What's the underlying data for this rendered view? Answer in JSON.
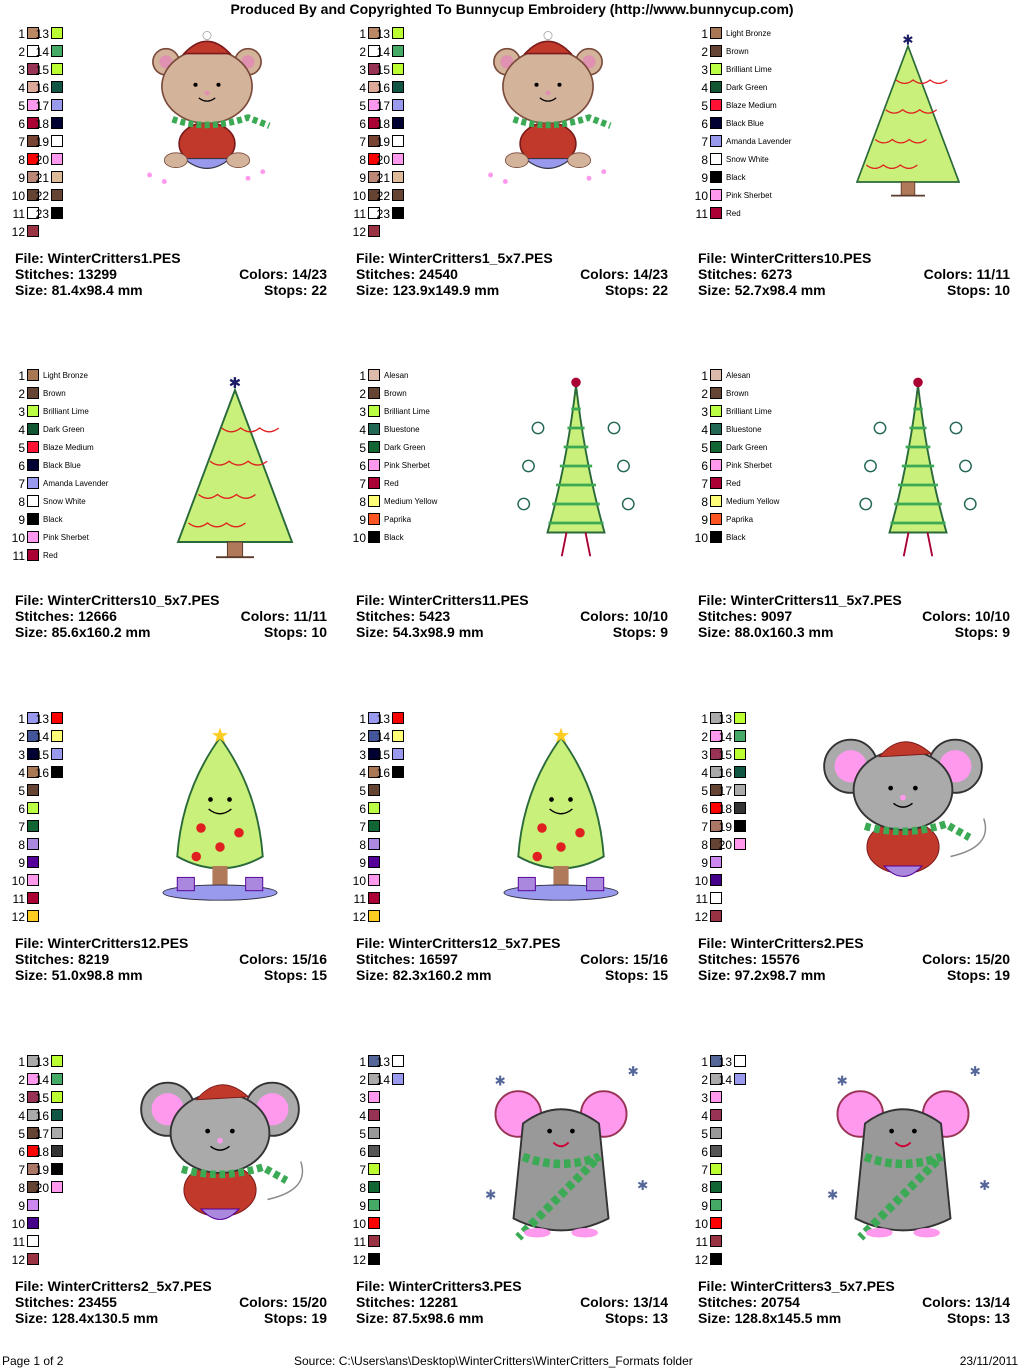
{
  "header": {
    "title": "Produced By and Copyrighted To Bunnycup Embroidery (http://www.bunnycup.com)"
  },
  "labels": {
    "file": "File: ",
    "stitches": "Stitches: ",
    "size": "Size: ",
    "colors": "Colors: ",
    "stops": "Stops: "
  },
  "palette_numbered": [
    {
      "n": "1",
      "c": "#bb8866"
    },
    {
      "n": "2",
      "c": "#ffffff"
    },
    {
      "n": "3",
      "c": "#993355"
    },
    {
      "n": "4",
      "c": "#ddaa99"
    },
    {
      "n": "5",
      "c": "#ff99ee"
    },
    {
      "n": "6",
      "c": "#aa0033"
    },
    {
      "n": "7",
      "c": "#774433"
    },
    {
      "n": "8",
      "c": "#ff0000"
    },
    {
      "n": "9",
      "c": "#bb8877"
    },
    {
      "n": "10",
      "c": "#664433"
    },
    {
      "n": "11",
      "c": "#ffffff"
    },
    {
      "n": "12",
      "c": "#993344"
    },
    {
      "n": "13",
      "c": "#bbff33"
    },
    {
      "n": "14",
      "c": "#44aa66"
    },
    {
      "n": "15",
      "c": "#bbff33"
    },
    {
      "n": "16",
      "c": "#115544"
    },
    {
      "n": "17",
      "c": "#9999ee"
    },
    {
      "n": "18",
      "c": "#000033"
    },
    {
      "n": "19",
      "c": "#ffffff"
    },
    {
      "n": "20",
      "c": "#ff99ee"
    },
    {
      "n": "21",
      "c": "#ddbb99"
    },
    {
      "n": "22",
      "c": "#664433"
    },
    {
      "n": "23",
      "c": "#000000"
    }
  ],
  "tree10_colors": [
    {
      "n": "1",
      "name": "Light Bronze",
      "c": "#aa7755"
    },
    {
      "n": "2",
      "name": "Brown",
      "c": "#664433"
    },
    {
      "n": "3",
      "name": "Brilliant Lime",
      "c": "#bbff44"
    },
    {
      "n": "4",
      "name": "Dark Green",
      "c": "#115533"
    },
    {
      "n": "5",
      "name": "Blaze Medium",
      "c": "#ff1133"
    },
    {
      "n": "6",
      "name": "Black Blue",
      "c": "#000033"
    },
    {
      "n": "7",
      "name": "Amanda Lavender",
      "c": "#9999ee"
    },
    {
      "n": "8",
      "name": "Snow White",
      "c": "#ffffff"
    },
    {
      "n": "9",
      "name": "Black",
      "c": "#000000"
    },
    {
      "n": "10",
      "name": "Pink Sherbet",
      "c": "#ff99ee"
    },
    {
      "n": "11",
      "name": "Red",
      "c": "#aa0033"
    }
  ],
  "tree11_colors": [
    {
      "n": "1",
      "name": "Alesan",
      "c": "#ddbbaa"
    },
    {
      "n": "2",
      "name": "Brown",
      "c": "#664433"
    },
    {
      "n": "3",
      "name": "Brilliant Lime",
      "c": "#bbff44"
    },
    {
      "n": "4",
      "name": "Bluestone",
      "c": "#226655"
    },
    {
      "n": "5",
      "name": "Dark Green",
      "c": "#116633"
    },
    {
      "n": "6",
      "name": "Pink Sherbet",
      "c": "#ff99ee"
    },
    {
      "n": "7",
      "name": "Red",
      "c": "#aa0033"
    },
    {
      "n": "8",
      "name": "Medium Yellow",
      "c": "#ffff77"
    },
    {
      "n": "9",
      "name": "Paprika",
      "c": "#ff5522"
    },
    {
      "n": "10",
      "name": "Black",
      "c": "#000000"
    }
  ],
  "tree12_colors": [
    {
      "n": "1",
      "c": "#9999ee"
    },
    {
      "n": "2",
      "c": "#445599"
    },
    {
      "n": "3",
      "c": "#000033"
    },
    {
      "n": "4",
      "c": "#aa7755"
    },
    {
      "n": "5",
      "c": "#664433"
    },
    {
      "n": "6",
      "c": "#bbff44"
    },
    {
      "n": "7",
      "c": "#116633"
    },
    {
      "n": "8",
      "c": "#aa88dd"
    },
    {
      "n": "9",
      "c": "#550099"
    },
    {
      "n": "10",
      "c": "#ff99ee"
    },
    {
      "n": "11",
      "c": "#aa0033"
    },
    {
      "n": "12",
      "c": "#ffcc22"
    },
    {
      "n": "13",
      "c": "#ff0000"
    },
    {
      "n": "14",
      "c": "#ffff77"
    },
    {
      "n": "15",
      "c": "#9999ee"
    },
    {
      "n": "16",
      "c": "#000000"
    }
  ],
  "mouse2_colors": [
    {
      "n": "1",
      "c": "#aaaaaa"
    },
    {
      "n": "2",
      "c": "#ff99ee"
    },
    {
      "n": "3",
      "c": "#993355"
    },
    {
      "n": "4",
      "c": "#aaaaaa"
    },
    {
      "n": "5",
      "c": "#664433"
    },
    {
      "n": "6",
      "c": "#ff0000"
    },
    {
      "n": "7",
      "c": "#aa7766"
    },
    {
      "n": "8",
      "c": "#664433"
    },
    {
      "n": "9",
      "c": "#cc88ee"
    },
    {
      "n": "10",
      "c": "#440088"
    },
    {
      "n": "11",
      "c": "#ffffff"
    },
    {
      "n": "12",
      "c": "#993344"
    },
    {
      "n": "13",
      "c": "#bbff33"
    },
    {
      "n": "14",
      "c": "#44aa66"
    },
    {
      "n": "15",
      "c": "#bbff33"
    },
    {
      "n": "16",
      "c": "#115544"
    },
    {
      "n": "17",
      "c": "#aaaaaa"
    },
    {
      "n": "18",
      "c": "#333333"
    },
    {
      "n": "19",
      "c": "#000000"
    },
    {
      "n": "20",
      "c": "#ff99ee"
    }
  ],
  "mouse3_colors": [
    {
      "n": "1",
      "c": "#556699"
    },
    {
      "n": "2",
      "c": "#aaaaaa"
    },
    {
      "n": "3",
      "c": "#ff99ee"
    },
    {
      "n": "4",
      "c": "#993355"
    },
    {
      "n": "5",
      "c": "#999999"
    },
    {
      "n": "6",
      "c": "#555555"
    },
    {
      "n": "7",
      "c": "#bbff33"
    },
    {
      "n": "8",
      "c": "#116633"
    },
    {
      "n": "9",
      "c": "#44aa66"
    },
    {
      "n": "10",
      "c": "#ff0000"
    },
    {
      "n": "11",
      "c": "#993344"
    },
    {
      "n": "12",
      "c": "#000000"
    },
    {
      "n": "13",
      "c": "#ffffff"
    },
    {
      "n": "14",
      "c": "#9999ee"
    }
  ],
  "designs": [
    {
      "file": "WinterCritters1.PES",
      "stitches": "13299",
      "size": "81.4x98.4 mm",
      "colors": "14/23",
      "stops": "22",
      "art": "bear",
      "scale": 0.82,
      "palette": "bear"
    },
    {
      "file": "WinterCritters1_5x7.PES",
      "stitches": "24540",
      "size": "123.9x149.9 mm",
      "colors": "14/23",
      "stops": "22",
      "art": "bear",
      "scale": 0.82,
      "palette": "bear"
    },
    {
      "file": "WinterCritters10.PES",
      "stitches": "6273",
      "size": "52.7x98.4 mm",
      "colors": "11/11",
      "stops": "10",
      "art": "tree10",
      "scale": 0.85,
      "palette": "tree10"
    },
    {
      "file": "WinterCritters10_5x7.PES",
      "stitches": "12666",
      "size": "85.6x160.2 mm",
      "colors": "11/11",
      "stops": "10",
      "art": "tree10",
      "scale": 0.95,
      "palette": "tree10"
    },
    {
      "file": "WinterCritters11.PES",
      "stitches": "5423",
      "size": "54.3x98.9 mm",
      "colors": "10/10",
      "stops": "9",
      "art": "tree11",
      "scale": 0.95,
      "palette": "tree11"
    },
    {
      "file": "WinterCritters11_5x7.PES",
      "stitches": "9097",
      "size": "88.0x160.3 mm",
      "colors": "10/10",
      "stops": "9",
      "art": "tree11",
      "scale": 0.95,
      "palette": "tree11"
    },
    {
      "file": "WinterCritters12.PES",
      "stitches": "8219",
      "size": "51.0x98.8 mm",
      "colors": "15/16",
      "stops": "15",
      "art": "tree12",
      "scale": 0.95,
      "palette": "tree12"
    },
    {
      "file": "WinterCritters12_5x7.PES",
      "stitches": "16597",
      "size": "82.3x160.2 mm",
      "colors": "15/16",
      "stops": "15",
      "art": "tree12",
      "scale": 0.95,
      "palette": "tree12"
    },
    {
      "file": "WinterCritters2.PES",
      "stitches": "15576",
      "size": "97.2x98.7 mm",
      "colors": "15/20",
      "stops": "19",
      "art": "mouse2",
      "scale": 0.95,
      "palette": "mouse2"
    },
    {
      "file": "WinterCritters2_5x7.PES",
      "stitches": "23455",
      "size": "128.4x130.5 mm",
      "colors": "15/20",
      "stops": "19",
      "art": "mouse2",
      "scale": 0.95,
      "palette": "mouse2"
    },
    {
      "file": "WinterCritters3.PES",
      "stitches": "12281",
      "size": "87.5x98.6 mm",
      "colors": "13/14",
      "stops": "13",
      "art": "mouse3",
      "scale": 0.95,
      "palette": "mouse3"
    },
    {
      "file": "WinterCritters3_5x7.PES",
      "stitches": "20754",
      "size": "128.8x145.5 mm",
      "colors": "13/14",
      "stops": "13",
      "art": "mouse3",
      "scale": 0.95,
      "palette": "mouse3"
    }
  ],
  "footer": {
    "page": "Page 1 of 2",
    "source": "Source:  C:\\Users\\ans\\Desktop\\WinterCritters\\WinterCritters_Formats folder",
    "date": "23/11/2011"
  }
}
